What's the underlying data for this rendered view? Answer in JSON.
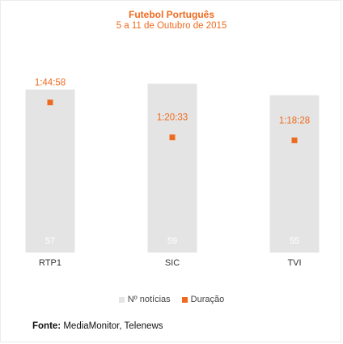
{
  "chart_data": {
    "type": "bar",
    "title": "Futebol Português",
    "subtitle": "5 a 11 de Outubro de 2015",
    "categories": [
      "RTP1",
      "SIC",
      "TVI"
    ],
    "series": [
      {
        "name": "Nº notícias",
        "values": [
          57,
          59,
          55
        ],
        "color": "#e4e4e4",
        "label_color": "#ffffff"
      },
      {
        "name": "Duração",
        "values": [
          "1:44:58",
          "1:20:33",
          "1:18:28"
        ],
        "seconds": [
          6298,
          4833,
          4708
        ],
        "color": "#ee6a1f"
      }
    ],
    "ylim_counts": [
      0,
      60
    ],
    "ylim_seconds": [
      0,
      7200
    ],
    "grid": false,
    "legend": "bottom"
  },
  "source": {
    "label": "Fonte:",
    "text": "MediaMonitor, Telenews"
  },
  "colors": {
    "accent": "#ee6a1f",
    "bar": "#e4e4e4"
  }
}
